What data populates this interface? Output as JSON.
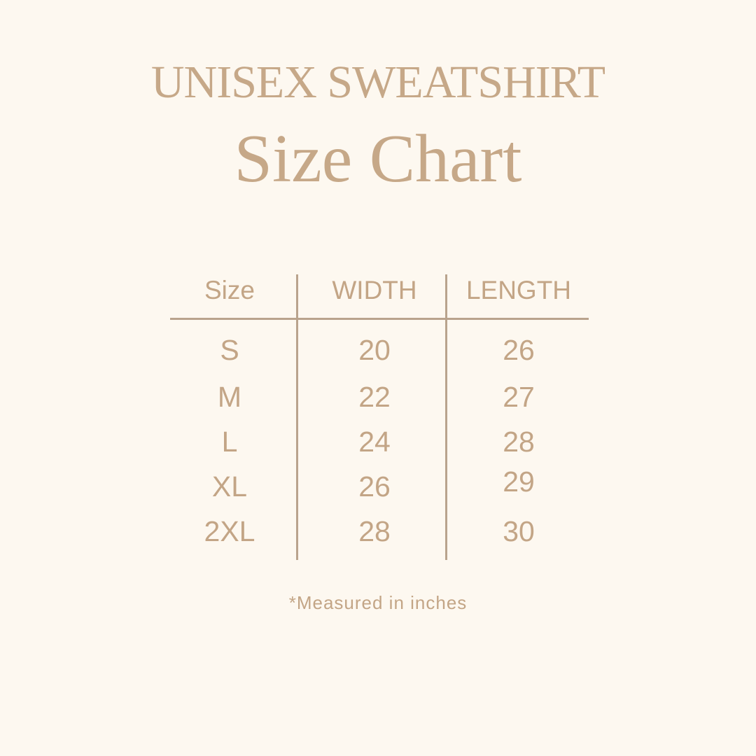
{
  "title": "UNISEX SWEATSHIRT",
  "subtitle": "Size Chart",
  "table": {
    "headers": [
      "Size",
      "WIDTH",
      "LENGTH"
    ],
    "rows": [
      [
        "S",
        "20",
        "26"
      ],
      [
        "M",
        "22",
        "27"
      ],
      [
        "L",
        "24",
        "28"
      ],
      [
        "XL",
        "26",
        "29"
      ],
      [
        "2XL",
        "28",
        "30"
      ]
    ]
  },
  "footnote": "*Measured in inches",
  "colors": {
    "background": "#fdf8f0",
    "text": "#c3a586",
    "lines": "#b9a38d"
  }
}
